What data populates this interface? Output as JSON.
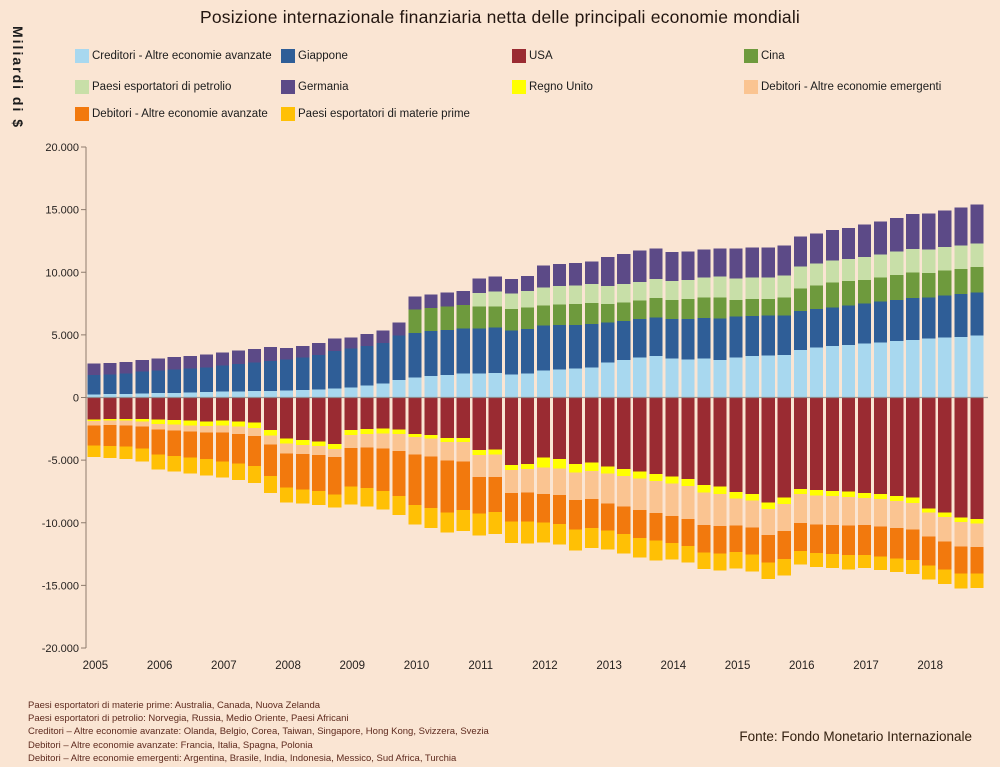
{
  "title": "Posizione internazionale finanziaria netta delle principali economie mondiali",
  "y_axis_title": "Miliardi di $",
  "source": "Fonte: Fondo Monetario Internazionale",
  "footnotes": [
    "Paesi esportatori di materie prime: Australia, Canada, Nuova Zelanda",
    "Paesi esportatori di petrolio: Norvegia, Russia, Medio Oriente, Paesi Africani",
    "Creditori – Altre economie avanzate: Olanda, Belgio, Corea, Taiwan, Singapore, Hong Kong, Svizzera, Svezia",
    "Debitori – Altre economie avanzate: Francia, Italia, Spagna, Polonia",
    "Debitori – Altre economie emergenti: Argentina, Brasile, India, Indonesia, Messico, Sud Africa, Turchia"
  ],
  "colors": {
    "background": "#fae5d3",
    "axis": "#8d7b6c",
    "zero_line": "#8c8c8c",
    "footnote_text": "#5e2a1e"
  },
  "chart_data": {
    "type": "bar",
    "stacked": true,
    "ylabel": "Miliardi di $",
    "ylim": [
      -20000,
      20000
    ],
    "y_tick_values": [
      20000,
      15000,
      10000,
      5000,
      0,
      -5000,
      -10000,
      -15000,
      -20000
    ],
    "y_tick_labels": [
      "20.000",
      "15.000",
      "10.000",
      "5.000",
      "0",
      "-5.000",
      "-10.000",
      "-15.000",
      "-20.000"
    ],
    "x_year_labels": [
      "2005",
      "2006",
      "2007",
      "2008",
      "2009",
      "2010",
      "2011",
      "2012",
      "2013",
      "2014",
      "2015",
      "2016",
      "2017",
      "2018"
    ],
    "quarters_per_year": 4,
    "grid": "zero-line-only",
    "legend_position": "top",
    "positive_stack_order": [
      "creditori_avanzate",
      "giappone",
      "cina",
      "petrolio",
      "germania"
    ],
    "negative_stack_order": [
      "usa",
      "regno_unito",
      "debitori_emergenti",
      "debitori_avanzate",
      "materie_prime"
    ],
    "series": [
      {
        "key": "creditori_avanzate",
        "name": "Creditori - Altre economie avanzate",
        "color": "#a8d8ef",
        "values": [
          250,
          270,
          290,
          310,
          340,
          370,
          400,
          430,
          460,
          490,
          510,
          530,
          550,
          600,
          650,
          700,
          800,
          950,
          1100,
          1400,
          1600,
          1700,
          1800,
          1900,
          1900,
          1950,
          1850,
          1900,
          2150,
          2250,
          2300,
          2400,
          2800,
          3000,
          3200,
          3300,
          3100,
          3050,
          3100,
          3000,
          3200,
          3300,
          3350,
          3400,
          3800,
          4000,
          4100,
          4200,
          4300,
          4400,
          4500,
          4600,
          4700,
          4800,
          4850,
          4950
        ]
      },
      {
        "key": "giappone",
        "name": "Giappone",
        "color": "#2f5e97",
        "values": [
          1550,
          1570,
          1620,
          1750,
          1800,
          1850,
          1900,
          1950,
          2100,
          2200,
          2300,
          2400,
          2500,
          2600,
          2750,
          3000,
          3100,
          3150,
          3250,
          3550,
          3550,
          3600,
          3600,
          3600,
          3600,
          3620,
          3500,
          3550,
          3590,
          3550,
          3500,
          3450,
          3200,
          3100,
          3060,
          3100,
          3150,
          3200,
          3250,
          3300,
          3250,
          3220,
          3190,
          3150,
          3100,
          3060,
          3100,
          3150,
          3200,
          3250,
          3300,
          3350,
          3300,
          3350,
          3400,
          3450
        ]
      },
      {
        "key": "usa",
        "name": "USA",
        "color": "#9a2b32",
        "values": [
          -1750,
          -1720,
          -1700,
          -1720,
          -1750,
          -1800,
          -1850,
          -1900,
          -1850,
          -1900,
          -2000,
          -2600,
          -3270,
          -3400,
          -3500,
          -3700,
          -2580,
          -2520,
          -2480,
          -2550,
          -2900,
          -3000,
          -3250,
          -3250,
          -4200,
          -4150,
          -5380,
          -5300,
          -4780,
          -4900,
          -5300,
          -5200,
          -5500,
          -5700,
          -5900,
          -6100,
          -6300,
          -6500,
          -7000,
          -7100,
          -7550,
          -7700,
          -8370,
          -8000,
          -7300,
          -7400,
          -7450,
          -7500,
          -7630,
          -7700,
          -7850,
          -8000,
          -8850,
          -9200,
          -9600,
          -9700
        ]
      },
      {
        "key": "cina",
        "name": "Cina",
        "color": "#6e9a3d",
        "values": [
          0,
          0,
          0,
          0,
          0,
          0,
          0,
          0,
          0,
          0,
          0,
          0,
          0,
          0,
          0,
          0,
          0,
          0,
          0,
          0,
          1860,
          1850,
          1870,
          1900,
          1750,
          1700,
          1720,
          1750,
          1600,
          1620,
          1650,
          1680,
          1460,
          1480,
          1500,
          1550,
          1550,
          1600,
          1650,
          1700,
          1350,
          1330,
          1330,
          1450,
          1800,
          1900,
          2000,
          1950,
          1900,
          1950,
          2000,
          2050,
          1950,
          1980,
          2000,
          2000
        ]
      },
      {
        "key": "petrolio",
        "name": "Paesi esportatori di petrolio",
        "color": "#c8dfa8",
        "values": [
          0,
          0,
          0,
          0,
          0,
          0,
          0,
          0,
          0,
          0,
          0,
          0,
          0,
          0,
          0,
          0,
          0,
          0,
          0,
          0,
          0,
          0,
          0,
          0,
          1100,
          1200,
          1250,
          1300,
          1460,
          1480,
          1500,
          1520,
          1460,
          1470,
          1480,
          1500,
          1500,
          1550,
          1600,
          1650,
          1700,
          1720,
          1730,
          1750,
          1750,
          1730,
          1720,
          1750,
          1800,
          1820,
          1850,
          1870,
          1850,
          1870,
          1900,
          1900
        ]
      },
      {
        "key": "germania",
        "name": "Germania",
        "color": "#5c4a87",
        "values": [
          900,
          910,
          930,
          950,
          980,
          1000,
          1020,
          1040,
          1050,
          1070,
          1080,
          1100,
          900,
          920,
          950,
          1000,
          900,
          950,
          1000,
          1050,
          1060,
          1080,
          1100,
          1120,
          1150,
          1180,
          1150,
          1200,
          1730,
          1750,
          1780,
          1800,
          2300,
          2400,
          2500,
          2450,
          2300,
          2250,
          2200,
          2250,
          2390,
          2400,
          2390,
          2400,
          2400,
          2420,
          2450,
          2500,
          2600,
          2650,
          2700,
          2800,
          2900,
          2950,
          3000,
          3100
        ]
      },
      {
        "key": "regno_unito",
        "name": "Regno Unito",
        "color": "#ffff00",
        "values": [
          -120,
          -130,
          -150,
          -200,
          -350,
          -360,
          -370,
          -380,
          -400,
          -420,
          -430,
          -450,
          -400,
          -380,
          -380,
          -400,
          -400,
          -390,
          -380,
          -370,
          -270,
          -280,
          -290,
          -300,
          -400,
          -390,
          -400,
          -400,
          -800,
          -750,
          -700,
          -650,
          -550,
          -560,
          -570,
          -580,
          -580,
          -570,
          -580,
          -590,
          -530,
          -540,
          -520,
          -510,
          -400,
          -420,
          -430,
          -440,
          -400,
          -410,
          -420,
          -430,
          -350,
          -360,
          -350,
          -350
        ]
      },
      {
        "key": "debitori_emergenti",
        "name": "Debitori - Altre economie emergenti",
        "color": "#fac491",
        "values": [
          -350,
          -360,
          -380,
          -400,
          -450,
          -460,
          -480,
          -500,
          -550,
          -600,
          -650,
          -700,
          -800,
          -750,
          -700,
          -650,
          -1060,
          -1100,
          -1200,
          -1350,
          -1400,
          -1450,
          -1500,
          -1550,
          -1750,
          -1800,
          -1860,
          -1900,
          -2130,
          -2150,
          -2200,
          -2250,
          -2400,
          -2450,
          -2500,
          -2550,
          -2600,
          -2620,
          -2600,
          -2580,
          -2130,
          -2150,
          -2100,
          -2150,
          -2300,
          -2320,
          -2300,
          -2280,
          -2150,
          -2170,
          -2150,
          -2100,
          -1900,
          -1920,
          -1950,
          -1900
        ]
      },
      {
        "key": "debitori_avanzate",
        "name": "Debitori - Altre economie avanzate",
        "color": "#f2790d",
        "values": [
          -1600,
          -1650,
          -1700,
          -1750,
          -2000,
          -2050,
          -2100,
          -2150,
          -2300,
          -2350,
          -2400,
          -2500,
          -2700,
          -2800,
          -2900,
          -3000,
          -3060,
          -3200,
          -3400,
          -3600,
          -4000,
          -4100,
          -4130,
          -3900,
          -2930,
          -2800,
          -2260,
          -2300,
          -2260,
          -2300,
          -2350,
          -2300,
          -2150,
          -2200,
          -2250,
          -2200,
          -2130,
          -2150,
          -2180,
          -2200,
          -2130,
          -2150,
          -2200,
          -2250,
          -2250,
          -2280,
          -2300,
          -2350,
          -2390,
          -2400,
          -2420,
          -2450,
          -2300,
          -2250,
          -2150,
          -2100
        ]
      },
      {
        "key": "materie_prime",
        "name": "Paesi esportatori di materie prime",
        "color": "#ffc005",
        "values": [
          -930,
          -960,
          -1000,
          -1050,
          -1200,
          -1220,
          -1250,
          -1280,
          -1300,
          -1320,
          -1350,
          -1380,
          -1200,
          -1150,
          -1100,
          -1050,
          -1460,
          -1480,
          -1500,
          -1520,
          -1550,
          -1580,
          -1600,
          -1650,
          -1730,
          -1740,
          -1730,
          -1750,
          -1600,
          -1620,
          -1650,
          -1630,
          -1550,
          -1560,
          -1570,
          -1580,
          -1330,
          -1340,
          -1350,
          -1360,
          -1330,
          -1340,
          -1320,
          -1300,
          -1100,
          -1120,
          -1150,
          -1180,
          -1060,
          -1080,
          -1100,
          -1120,
          -1150,
          -1170,
          -1200,
          -1150
        ]
      }
    ],
    "legend_order": [
      "creditori_avanzate",
      "giappone",
      "usa",
      "cina",
      "petrolio",
      "germania",
      "regno_unito",
      "debitori_emergenti",
      "debitori_avanzate",
      "materie_prime"
    ]
  }
}
